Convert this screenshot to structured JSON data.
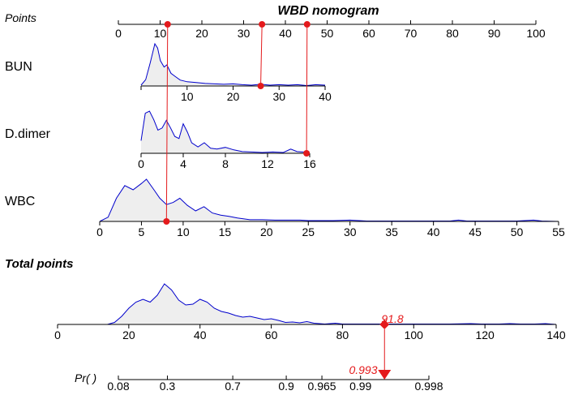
{
  "chart_data": {
    "type": "nomogram",
    "title": "WBD nomogram",
    "colors": {
      "density_line": "#0000cc",
      "density_fill": "#eeeeee",
      "highlight": "#e41a1c",
      "axis": "#000000"
    },
    "points_axis": {
      "label": "Points",
      "min": 0,
      "max": 100,
      "ticks": [
        0,
        10,
        20,
        30,
        40,
        50,
        60,
        70,
        80,
        90,
        100
      ]
    },
    "variables": [
      {
        "name": "BUN",
        "min": 0,
        "max": 40,
        "ticks": [
          10,
          20,
          30,
          40
        ],
        "tick_labels": [
          "10",
          "20",
          "30",
          "40"
        ],
        "selected_value": 26,
        "selected_points": 34.4,
        "density": [
          [
            0,
            0.02
          ],
          [
            1,
            0.15
          ],
          [
            2,
            0.55
          ],
          [
            3,
            1.0
          ],
          [
            3.6,
            0.9
          ],
          [
            4.2,
            0.6
          ],
          [
            5,
            0.45
          ],
          [
            5.6,
            0.5
          ],
          [
            6.5,
            0.3
          ],
          [
            7.5,
            0.22
          ],
          [
            8.5,
            0.14
          ],
          [
            10,
            0.1
          ],
          [
            12,
            0.08
          ],
          [
            14,
            0.06
          ],
          [
            16,
            0.05
          ],
          [
            18,
            0.04
          ],
          [
            20,
            0.05
          ],
          [
            22,
            0.03
          ],
          [
            24,
            0.02
          ],
          [
            26,
            0.04
          ],
          [
            28,
            0.02
          ],
          [
            30,
            0.03
          ],
          [
            32,
            0.02
          ],
          [
            34,
            0.03
          ],
          [
            36,
            0.01
          ],
          [
            38,
            0.03
          ],
          [
            40,
            0.02
          ]
        ]
      },
      {
        "name": "D.dimer",
        "min": 0,
        "max": 16,
        "ticks": [
          0,
          4,
          8,
          12,
          16
        ],
        "tick_labels": [
          "0",
          "4",
          "8",
          "12",
          "16"
        ],
        "selected_value": 15.7,
        "selected_points": 45.2,
        "density": [
          [
            0,
            0.3
          ],
          [
            0.4,
            0.95
          ],
          [
            0.8,
            1.0
          ],
          [
            1.2,
            0.8
          ],
          [
            1.6,
            0.55
          ],
          [
            2.0,
            0.6
          ],
          [
            2.4,
            0.78
          ],
          [
            2.8,
            0.6
          ],
          [
            3.2,
            0.4
          ],
          [
            3.6,
            0.35
          ],
          [
            4.0,
            0.7
          ],
          [
            4.4,
            0.5
          ],
          [
            4.8,
            0.25
          ],
          [
            5.4,
            0.15
          ],
          [
            6.0,
            0.25
          ],
          [
            6.6,
            0.12
          ],
          [
            7.2,
            0.1
          ],
          [
            8.0,
            0.14
          ],
          [
            8.8,
            0.08
          ],
          [
            9.6,
            0.04
          ],
          [
            10.5,
            0.03
          ],
          [
            11.5,
            0.02
          ],
          [
            12.5,
            0.03
          ],
          [
            13.5,
            0.02
          ],
          [
            14.2,
            0.1
          ],
          [
            14.8,
            0.04
          ],
          [
            15.4,
            0.03
          ],
          [
            16,
            0.02
          ]
        ]
      },
      {
        "name": "WBC",
        "min": 0,
        "max": 55,
        "ticks": [
          0,
          5,
          10,
          15,
          20,
          25,
          30,
          35,
          40,
          45,
          50,
          55
        ],
        "tick_labels": [
          "0",
          "5",
          "10",
          "15",
          "20",
          "25",
          "30",
          "35",
          "40",
          "45",
          "50",
          "55"
        ],
        "selected_value": 8,
        "selected_points": 11.8,
        "density": [
          [
            0,
            0.0
          ],
          [
            1,
            0.1
          ],
          [
            2,
            0.55
          ],
          [
            3,
            0.85
          ],
          [
            4,
            0.75
          ],
          [
            5,
            0.9
          ],
          [
            5.6,
            1.0
          ],
          [
            6.5,
            0.75
          ],
          [
            7.2,
            0.55
          ],
          [
            8,
            0.4
          ],
          [
            8.8,
            0.45
          ],
          [
            9.6,
            0.55
          ],
          [
            10.5,
            0.38
          ],
          [
            11.5,
            0.25
          ],
          [
            12.5,
            0.35
          ],
          [
            13.5,
            0.2
          ],
          [
            14.5,
            0.15
          ],
          [
            15.5,
            0.12
          ],
          [
            16.5,
            0.08
          ],
          [
            18,
            0.04
          ],
          [
            19.5,
            0.04
          ],
          [
            21,
            0.03
          ],
          [
            22,
            0.03
          ],
          [
            24,
            0.03
          ],
          [
            25,
            0.02
          ],
          [
            28,
            0.02
          ],
          [
            30,
            0.03
          ],
          [
            32,
            0.01
          ],
          [
            35,
            0.01
          ],
          [
            38,
            0.01
          ],
          [
            42,
            0.01
          ],
          [
            43,
            0.03
          ],
          [
            44,
            0.01
          ],
          [
            48,
            0.01
          ],
          [
            50,
            0.01
          ],
          [
            52,
            0.03
          ],
          [
            53,
            0.01
          ],
          [
            55,
            0.0
          ]
        ]
      }
    ],
    "total_points_axis": {
      "label": "Total points",
      "min": 0,
      "max": 140,
      "ticks": [
        0,
        20,
        40,
        60,
        80,
        100,
        120,
        140
      ],
      "selected_value": 91.8,
      "selected_label": "91.8",
      "density": [
        [
          14,
          0.0
        ],
        [
          16,
          0.05
        ],
        [
          18,
          0.2
        ],
        [
          20,
          0.4
        ],
        [
          22,
          0.55
        ],
        [
          24,
          0.62
        ],
        [
          26,
          0.55
        ],
        [
          28,
          0.72
        ],
        [
          30,
          1.0
        ],
        [
          32,
          0.85
        ],
        [
          34,
          0.6
        ],
        [
          36,
          0.48
        ],
        [
          38,
          0.5
        ],
        [
          40,
          0.62
        ],
        [
          42,
          0.55
        ],
        [
          44,
          0.4
        ],
        [
          46,
          0.32
        ],
        [
          48,
          0.28
        ],
        [
          50,
          0.22
        ],
        [
          52,
          0.18
        ],
        [
          54,
          0.2
        ],
        [
          56,
          0.16
        ],
        [
          58,
          0.12
        ],
        [
          60,
          0.14
        ],
        [
          62,
          0.1
        ],
        [
          64,
          0.05
        ],
        [
          66,
          0.06
        ],
        [
          68,
          0.04
        ],
        [
          70,
          0.07
        ],
        [
          72,
          0.03
        ],
        [
          75,
          0.01
        ],
        [
          78,
          0.03
        ],
        [
          80,
          0.01
        ],
        [
          85,
          0.01
        ],
        [
          90,
          0.01
        ],
        [
          96,
          0.01
        ],
        [
          100,
          0.01
        ],
        [
          110,
          0.01
        ],
        [
          116,
          0.02
        ],
        [
          119,
          0.01
        ],
        [
          124,
          0.01
        ],
        [
          127,
          0.02
        ],
        [
          130,
          0.01
        ],
        [
          134,
          0.01
        ],
        [
          137,
          0.02
        ],
        [
          140,
          0.0
        ]
      ]
    },
    "probability_axis": {
      "label": "Pr( )",
      "ticks": [
        {
          "label": "0.08",
          "total_points": 3.5
        },
        {
          "label": "0.3",
          "total_points": 20
        },
        {
          "label": "0.7",
          "total_points": 42
        },
        {
          "label": "0.9",
          "total_points": 60
        },
        {
          "label": "0.965",
          "total_points": 72
        },
        {
          "label": "0.99",
          "total_points": 85
        },
        {
          "label": "0.998",
          "total_points": 108
        }
      ],
      "range_total_points": [
        3.5,
        108
      ],
      "selected_label": "0.993"
    }
  }
}
